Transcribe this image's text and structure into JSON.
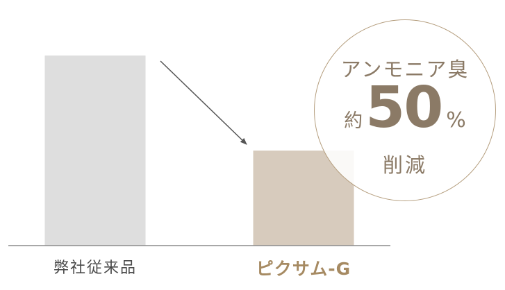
{
  "chart_data": {
    "type": "bar",
    "categories": [
      "弊社従来品",
      "ピクサム-G"
    ],
    "values": [
      100,
      50
    ],
    "ylim": [
      0,
      100
    ],
    "colors": [
      "#dedede",
      "#d7cbbd"
    ],
    "axis_color": "#8c8c8c",
    "arrow_color": "#555555"
  },
  "badge": {
    "line1": "アンモニア臭",
    "prefix": "約",
    "value": "50",
    "unit": "%",
    "line3": "削減",
    "color": "#8b7a66",
    "border_color": "#b59e7e"
  },
  "label_colors": {
    "default": "#4a4a4a",
    "highlight": "#a68a62"
  }
}
